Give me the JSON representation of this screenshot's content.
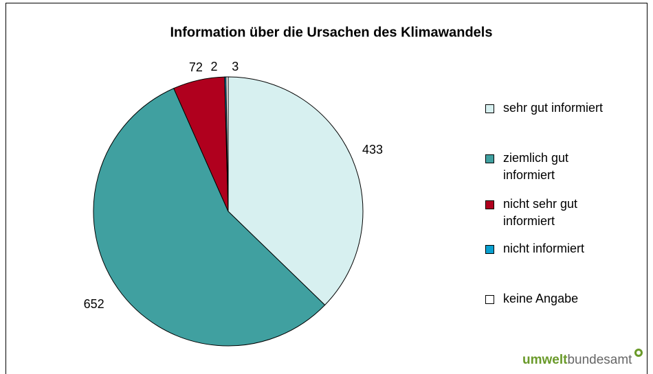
{
  "chart_data": {
    "type": "pie",
    "title": "Information über die Ursachen des Klimawandels",
    "categories": [
      "sehr gut informiert",
      "ziemlich gut informiert",
      "nicht sehr gut informiert",
      "nicht informiert",
      "keine Angabe"
    ],
    "values": [
      433,
      652,
      72,
      2,
      3
    ],
    "colors": [
      "#d7f0f0",
      "#40a0a0",
      "#b0001e",
      "#0aa0d0",
      "#ffffff"
    ],
    "legend": "right"
  },
  "logo": {
    "bold": "umwelt",
    "rest": "bundesamt"
  }
}
